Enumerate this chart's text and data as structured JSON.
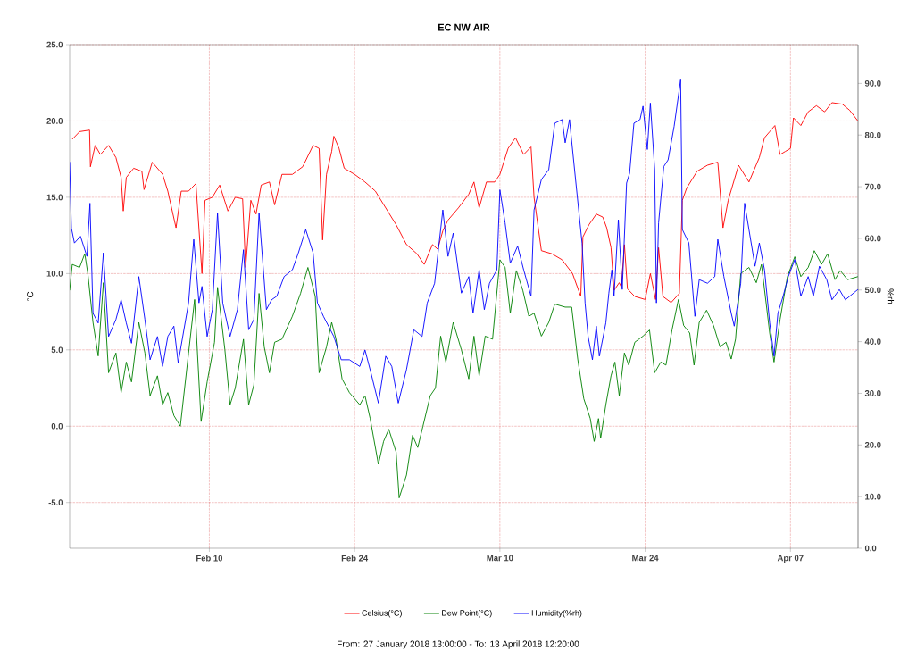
{
  "chart_data": {
    "type": "line",
    "title": "EC NW AIR",
    "ylabel": "°C",
    "y2label": "%rh",
    "annotations": [
      "From: 27 January 2018 13:00:00  -  To: 13 April 2018 12:20:00"
    ],
    "xlim": [
      "2018-01-27T13:00",
      "2018-04-13T12:20"
    ],
    "xticks": [
      {
        "value": "2018-02-10",
        "label": "Feb 10"
      },
      {
        "value": "2018-02-24",
        "label": "Feb 24"
      },
      {
        "value": "2018-03-10",
        "label": "Mar 10"
      },
      {
        "value": "2018-03-24",
        "label": "Mar 24"
      },
      {
        "value": "2018-04-07",
        "label": "Apr 07"
      }
    ],
    "ylim": [
      -8,
      25
    ],
    "yticks": [
      {
        "value": -5,
        "label": "-5.0"
      },
      {
        "value": 0,
        "label": "0.0"
      },
      {
        "value": 5,
        "label": "5.0"
      },
      {
        "value": 10,
        "label": "10.0"
      },
      {
        "value": 15,
        "label": "15.0"
      },
      {
        "value": 20,
        "label": "20.0"
      },
      {
        "value": 25,
        "label": "25.0"
      }
    ],
    "y2lim": [
      0,
      97.5
    ],
    "y2ticks": [
      {
        "value": 0,
        "label": "0.0"
      },
      {
        "value": 10,
        "label": "10.0"
      },
      {
        "value": 20,
        "label": "20.0"
      },
      {
        "value": 30,
        "label": "30.0"
      },
      {
        "value": 40,
        "label": "40.0"
      },
      {
        "value": 50,
        "label": "50.0"
      },
      {
        "value": 60,
        "label": "60.0"
      },
      {
        "value": 70,
        "label": "70.0"
      },
      {
        "value": 80,
        "label": "80.0"
      },
      {
        "value": 90,
        "label": "90.0"
      }
    ],
    "grid": true,
    "legend": "bottom",
    "series": [
      {
        "name": "Celsius(°C)",
        "color": "#ff0000",
        "x": [
          "2018-01-27T19:00",
          "2018-01-28T12:00",
          "2018-01-29T11:00",
          "2018-01-29T13:00",
          "2018-01-30T00:00",
          "2018-01-30T12:00",
          "2018-01-31T07:00",
          "2018-02-01T00:00",
          "2018-02-01T12:00",
          "2018-02-01T17:00",
          "2018-02-02T00:00",
          "2018-02-02T17:00",
          "2018-02-03T12:00",
          "2018-02-03T17:00",
          "2018-02-04T12:00",
          "2018-02-05T12:00",
          "2018-02-06T00:00",
          "2018-02-06T19:00",
          "2018-02-07T07:00",
          "2018-02-08T00:00",
          "2018-02-08T17:00",
          "2018-02-09T07:00",
          "2018-02-09T14:00",
          "2018-02-10T07:00",
          "2018-02-11T00:00",
          "2018-02-11T19:00",
          "2018-02-12T12:00",
          "2018-02-13T05:00",
          "2018-02-13T12:00",
          "2018-02-14T00:00",
          "2018-02-14T12:00",
          "2018-02-15T00:00",
          "2018-02-15T19:00",
          "2018-02-16T07:00",
          "2018-02-17T00:00",
          "2018-02-18T00:00",
          "2018-02-19T00:00",
          "2018-02-20T00:00",
          "2018-02-20T14:00",
          "2018-02-20T22:00",
          "2018-02-21T07:00",
          "2018-02-21T19:00",
          "2018-02-22T00:00",
          "2018-02-22T12:00",
          "2018-02-23T00:00",
          "2018-02-24T00:00",
          "2018-02-25T00:00",
          "2018-02-26T00:00",
          "2018-02-27T00:00",
          "2018-02-28T00:00",
          "2018-03-01T00:00",
          "2018-03-02T00:00",
          "2018-03-02T17:00",
          "2018-03-03T12:00",
          "2018-03-04T00:00",
          "2018-03-04T12:00",
          "2018-03-05T00:00",
          "2018-03-06T00:00",
          "2018-03-07T00:00",
          "2018-03-07T12:00",
          "2018-03-08T00:00",
          "2018-03-08T17:00",
          "2018-03-09T12:00",
          "2018-03-10T00:00",
          "2018-03-10T19:00",
          "2018-03-11T12:00",
          "2018-03-12T07:00",
          "2018-03-13T00:00",
          "2018-03-13T07:00",
          "2018-03-14T00:00",
          "2018-03-15T00:00",
          "2018-03-16T00:00",
          "2018-03-17T00:00",
          "2018-03-17T19:00",
          "2018-03-18T00:00",
          "2018-03-18T14:00",
          "2018-03-19T07:00",
          "2018-03-19T22:00",
          "2018-03-20T07:00",
          "2018-03-20T17:00",
          "2018-03-21T00:00",
          "2018-03-21T12:00",
          "2018-03-21T17:00",
          "2018-03-22T00:00",
          "2018-03-22T07:00",
          "2018-03-23T00:00",
          "2018-03-24T00:00",
          "2018-03-24T12:00",
          "2018-03-25T00:00",
          "2018-03-25T07:00",
          "2018-03-25T17:00",
          "2018-03-26T12:00",
          "2018-03-27T07:00",
          "2018-03-27T14:00",
          "2018-03-28T00:00",
          "2018-03-29T00:00",
          "2018-03-30T00:00",
          "2018-03-31T00:00",
          "2018-03-31T12:00",
          "2018-04-01T00:00",
          "2018-04-02T00:00",
          "2018-04-03T00:00",
          "2018-04-04T00:00",
          "2018-04-04T12:00",
          "2018-04-05T00:00",
          "2018-04-05T12:00",
          "2018-04-06T00:00",
          "2018-04-06T12:00",
          "2018-04-07T00:00",
          "2018-04-07T07:00",
          "2018-04-08T00:00",
          "2018-04-08T17:00",
          "2018-04-09T12:00",
          "2018-04-10T07:00",
          "2018-04-11T00:00",
          "2018-04-12T00:00",
          "2018-04-12T17:00",
          "2018-04-13T12:00"
        ],
        "values": [
          18.8,
          19.3,
          19.4,
          17.0,
          18.4,
          17.8,
          18.4,
          17.6,
          16.3,
          14.1,
          16.3,
          16.9,
          16.7,
          15.5,
          17.3,
          16.5,
          15.4,
          13.0,
          15.4,
          15.4,
          15.9,
          10.0,
          14.8,
          15.0,
          15.8,
          14.1,
          15.0,
          14.9,
          10.4,
          14.8,
          13.9,
          15.8,
          16.0,
          14.5,
          16.5,
          16.5,
          17.0,
          18.4,
          18.2,
          12.2,
          16.5,
          18.0,
          19.0,
          18.2,
          16.9,
          16.5,
          16.0,
          15.4,
          14.3,
          13.2,
          11.9,
          11.3,
          10.6,
          11.9,
          11.6,
          12.8,
          13.5,
          14.3,
          15.2,
          16.0,
          14.3,
          16.0,
          16.0,
          16.5,
          18.2,
          18.9,
          17.8,
          18.3,
          15.0,
          11.5,
          11.3,
          10.9,
          10.0,
          8.5,
          12.4,
          13.2,
          13.9,
          13.7,
          13.0,
          11.7,
          8.9,
          9.4,
          9.1,
          11.9,
          9.0,
          8.5,
          8.3,
          10.0,
          8.3,
          11.7,
          8.5,
          8.1,
          8.7,
          14.8,
          15.6,
          16.7,
          17.1,
          17.3,
          13.0,
          14.8,
          17.1,
          16.0,
          17.6,
          18.9,
          19.3,
          19.7,
          17.8,
          18.0,
          18.2,
          20.2,
          19.7,
          20.6,
          21.0,
          20.6,
          21.2,
          21.1,
          20.7,
          20.0
        ]
      },
      {
        "name": "Dew Point(°C)",
        "color": "#008000",
        "x": [
          "2018-01-27T13:00",
          "2018-01-27T19:00",
          "2018-01-28T12:00",
          "2018-01-29T00:00",
          "2018-01-29T07:00",
          "2018-01-29T19:00",
          "2018-01-30T07:00",
          "2018-01-30T19:00",
          "2018-01-31T07:00",
          "2018-02-01T00:00",
          "2018-02-01T12:00",
          "2018-02-02T00:00",
          "2018-02-02T12:00",
          "2018-02-03T05:00",
          "2018-02-03T19:00",
          "2018-02-04T07:00",
          "2018-02-05T00:00",
          "2018-02-05T12:00",
          "2018-02-06T00:00",
          "2018-02-06T14:00",
          "2018-02-07T05:00",
          "2018-02-08T00:00",
          "2018-02-08T14:00",
          "2018-02-09T05:00",
          "2018-02-09T19:00",
          "2018-02-10T12:00",
          "2018-02-10T19:00",
          "2018-02-11T12:00",
          "2018-02-12T00:00",
          "2018-02-12T12:00",
          "2018-02-13T07:00",
          "2018-02-13T19:00",
          "2018-02-14T07:00",
          "2018-02-14T19:00",
          "2018-02-15T07:00",
          "2018-02-15T19:00",
          "2018-02-16T07:00",
          "2018-02-17T00:00",
          "2018-02-18T00:00",
          "2018-02-18T19:00",
          "2018-02-19T12:00",
          "2018-02-20T05:00",
          "2018-02-20T14:00",
          "2018-02-21T07:00",
          "2018-02-21T19:00",
          "2018-02-22T05:00",
          "2018-02-22T19:00",
          "2018-02-23T12:00",
          "2018-02-24T12:00",
          "2018-02-25T00:00",
          "2018-02-25T12:00",
          "2018-02-26T07:00",
          "2018-02-26T19:00",
          "2018-02-27T07:00",
          "2018-02-28T00:00",
          "2018-02-28T07:00",
          "2018-03-01T00:00",
          "2018-03-01T14:00",
          "2018-03-02T02:00",
          "2018-03-02T14:00",
          "2018-03-03T07:00",
          "2018-03-03T19:00",
          "2018-03-04T07:00",
          "2018-03-04T19:00",
          "2018-03-05T12:00",
          "2018-03-06T07:00",
          "2018-03-07T00:00",
          "2018-03-07T12:00",
          "2018-03-08T00:00",
          "2018-03-08T14:00",
          "2018-03-09T07:00",
          "2018-03-10T00:00",
          "2018-03-10T12:00",
          "2018-03-11T00:00",
          "2018-03-11T14:00",
          "2018-03-12T05:00",
          "2018-03-12T19:00",
          "2018-03-13T07:00",
          "2018-03-14T00:00",
          "2018-03-14T17:00",
          "2018-03-15T07:00",
          "2018-03-16T07:00",
          "2018-03-16T22:00",
          "2018-03-17T12:00",
          "2018-03-18T02:00",
          "2018-03-18T17:00",
          "2018-03-19T02:00",
          "2018-03-19T12:00",
          "2018-03-19T17:00",
          "2018-03-20T05:00",
          "2018-03-20T17:00",
          "2018-03-21T02:00",
          "2018-03-21T12:00",
          "2018-03-22T00:00",
          "2018-03-22T10:00",
          "2018-03-23T00:00",
          "2018-03-23T19:00",
          "2018-03-24T10:00",
          "2018-03-24T22:00",
          "2018-03-25T12:00",
          "2018-03-26T00:00",
          "2018-03-26T14:00",
          "2018-03-27T05:00",
          "2018-03-27T17:00",
          "2018-03-28T07:00",
          "2018-03-28T17:00",
          "2018-03-29T05:00",
          "2018-03-29T22:00",
          "2018-03-30T14:00",
          "2018-03-31T05:00",
          "2018-03-31T19:00",
          "2018-04-01T07:00",
          "2018-04-01T17:00",
          "2018-04-02T05:00",
          "2018-04-03T00:00",
          "2018-04-03T17:00",
          "2018-04-04T05:00",
          "2018-04-05T00:00",
          "2018-04-05T10:00",
          "2018-04-06T00:00",
          "2018-04-06T17:00",
          "2018-04-07T10:00",
          "2018-04-08T00:00",
          "2018-04-08T17:00",
          "2018-04-09T07:00",
          "2018-04-10T00:00",
          "2018-04-10T14:00",
          "2018-04-11T07:00",
          "2018-04-11T19:00",
          "2018-04-12T12:00",
          "2018-04-13T12:00"
        ],
        "values": [
          8.9,
          10.6,
          10.4,
          11.3,
          10.0,
          6.8,
          4.6,
          9.4,
          3.5,
          4.8,
          2.2,
          4.2,
          2.9,
          6.8,
          4.8,
          2.0,
          3.3,
          1.4,
          2.2,
          0.7,
          0.0,
          4.8,
          8.3,
          0.3,
          2.9,
          5.5,
          9.1,
          5.0,
          1.4,
          2.5,
          5.7,
          1.4,
          2.7,
          8.7,
          5.2,
          3.5,
          5.5,
          5.7,
          7.2,
          8.7,
          10.4,
          8.5,
          3.5,
          5.2,
          6.8,
          5.7,
          3.1,
          2.2,
          1.4,
          2.0,
          0.5,
          -2.5,
          -1.0,
          -0.2,
          -1.7,
          -4.7,
          -3.2,
          -0.6,
          -1.4,
          0.0,
          2.0,
          2.5,
          5.9,
          4.2,
          6.8,
          5.0,
          3.1,
          5.9,
          3.3,
          5.9,
          5.7,
          10.9,
          10.4,
          7.4,
          10.2,
          8.9,
          7.2,
          7.4,
          5.9,
          6.8,
          8.0,
          7.8,
          7.8,
          4.4,
          1.8,
          0.5,
          -1.0,
          0.5,
          -0.8,
          1.4,
          3.3,
          4.2,
          2.0,
          4.8,
          4.0,
          5.5,
          5.9,
          6.3,
          3.5,
          4.2,
          4.0,
          6.3,
          8.3,
          6.6,
          6.1,
          4.0,
          6.8,
          7.6,
          6.6,
          5.2,
          5.5,
          4.4,
          5.7,
          10.0,
          10.4,
          9.4,
          10.6,
          6.1,
          4.2,
          7.0,
          9.8,
          11.1,
          9.8,
          10.4,
          11.5,
          10.6,
          11.3,
          9.6,
          10.2,
          9.6,
          9.8
        ]
      },
      {
        "name": "Humidity(%rh)",
        "color": "#0000ff",
        "axis": "y2",
        "x": [
          "2018-01-27T13:00",
          "2018-01-27T17:00",
          "2018-01-28T00:00",
          "2018-01-28T14:00",
          "2018-01-29T05:00",
          "2018-01-29T12:00",
          "2018-01-29T19:00",
          "2018-01-30T07:00",
          "2018-01-30T19:00",
          "2018-01-31T07:00",
          "2018-02-01T00:00",
          "2018-02-01T12:00",
          "2018-02-02T00:00",
          "2018-02-02T12:00",
          "2018-02-03T05:00",
          "2018-02-03T19:00",
          "2018-02-04T07:00",
          "2018-02-05T00:00",
          "2018-02-05T12:00",
          "2018-02-06T00:00",
          "2018-02-06T14:00",
          "2018-02-07T00:00",
          "2018-02-08T00:00",
          "2018-02-08T12:00",
          "2018-02-09T00:00",
          "2018-02-09T07:00",
          "2018-02-09T19:00",
          "2018-02-10T07:00",
          "2018-02-10T19:00",
          "2018-02-11T07:00",
          "2018-02-12T00:00",
          "2018-02-12T17:00",
          "2018-02-13T07:00",
          "2018-02-13T19:00",
          "2018-02-14T07:00",
          "2018-02-14T19:00",
          "2018-02-15T12:00",
          "2018-02-16T00:00",
          "2018-02-16T12:00",
          "2018-02-17T05:00",
          "2018-02-18T00:00",
          "2018-02-18T14:00",
          "2018-02-19T07:00",
          "2018-02-20T00:00",
          "2018-02-20T10:00",
          "2018-02-21T00:00",
          "2018-02-22T00:00",
          "2018-02-22T17:00",
          "2018-02-23T12:00",
          "2018-02-24T12:00",
          "2018-02-25T00:00",
          "2018-02-25T14:00",
          "2018-02-26T07:00",
          "2018-02-27T00:00",
          "2018-02-27T14:00",
          "2018-02-28T05:00",
          "2018-03-01T00:00",
          "2018-03-01T17:00",
          "2018-03-02T12:00",
          "2018-03-03T00:00",
          "2018-03-03T17:00",
          "2018-03-04T12:00",
          "2018-03-05T00:00",
          "2018-03-05T12:00",
          "2018-03-06T07:00",
          "2018-03-07T00:00",
          "2018-03-07T10:00",
          "2018-03-08T00:00",
          "2018-03-08T12:00",
          "2018-03-09T00:00",
          "2018-03-09T17:00",
          "2018-03-10T00:00",
          "2018-03-10T12:00",
          "2018-03-11T00:00",
          "2018-03-11T17:00",
          "2018-03-12T07:00",
          "2018-03-13T00:00",
          "2018-03-13T07:00",
          "2018-03-14T00:00",
          "2018-03-14T17:00",
          "2018-03-15T07:00",
          "2018-03-16T00:00",
          "2018-03-16T07:00",
          "2018-03-16T17:00",
          "2018-03-17T07:00",
          "2018-03-17T22:00",
          "2018-03-18T05:00",
          "2018-03-18T12:00",
          "2018-03-18T22:00",
          "2018-03-19T07:00",
          "2018-03-19T14:00",
          "2018-03-20T05:00",
          "2018-03-20T12:00",
          "2018-03-20T19:00",
          "2018-03-21T00:00",
          "2018-03-21T10:00",
          "2018-03-21T19:00",
          "2018-03-22T05:00",
          "2018-03-22T12:00",
          "2018-03-22T22:00",
          "2018-03-23T12:00",
          "2018-03-23T19:00",
          "2018-03-24T05:00",
          "2018-03-24T12:00",
          "2018-03-24T22:00",
          "2018-03-25T02:00",
          "2018-03-25T07:00",
          "2018-03-25T19:00",
          "2018-03-26T05:00",
          "2018-03-26T19:00",
          "2018-03-27T10:00",
          "2018-03-27T14:00",
          "2018-03-28T05:00",
          "2018-03-28T19:00",
          "2018-03-29T05:00",
          "2018-03-30T00:00",
          "2018-03-30T17:00",
          "2018-03-31T00:00",
          "2018-03-31T14:00",
          "2018-04-01T07:00",
          "2018-04-01T14:00",
          "2018-04-02T05:00",
          "2018-04-02T14:00",
          "2018-04-03T00:00",
          "2018-04-03T14:00",
          "2018-04-04T00:00",
          "2018-04-04T12:00",
          "2018-04-05T00:00",
          "2018-04-05T10:00",
          "2018-04-05T19:00",
          "2018-04-06T07:00",
          "2018-04-06T19:00",
          "2018-04-07T10:00",
          "2018-04-08T00:00",
          "2018-04-08T17:00",
          "2018-04-09T05:00",
          "2018-04-09T19:00",
          "2018-04-10T12:00",
          "2018-04-11T00:00",
          "2018-04-11T17:00",
          "2018-04-12T07:00",
          "2018-04-13T12:00"
        ],
        "values": [
          74.8,
          62.0,
          59.1,
          60.4,
          56.5,
          66.8,
          45.5,
          43.6,
          57.2,
          41.0,
          44.3,
          48.1,
          43.6,
          39.7,
          52.6,
          44.3,
          36.5,
          41.0,
          35.2,
          41.0,
          43.0,
          35.9,
          47.5,
          59.8,
          47.5,
          50.7,
          41.0,
          46.2,
          64.9,
          47.5,
          41.0,
          46.2,
          57.8,
          42.3,
          44.3,
          64.9,
          46.2,
          48.1,
          48.8,
          52.6,
          53.9,
          57.2,
          61.7,
          57.2,
          47.5,
          44.9,
          41.0,
          36.5,
          36.5,
          35.2,
          38.4,
          33.9,
          28.1,
          37.2,
          35.2,
          28.1,
          34.6,
          42.3,
          41.0,
          47.5,
          51.3,
          65.5,
          56.5,
          61.0,
          49.4,
          52.6,
          45.5,
          53.9,
          46.2,
          51.3,
          53.9,
          69.4,
          63.0,
          55.2,
          58.5,
          53.9,
          48.8,
          65.5,
          71.4,
          73.3,
          82.3,
          83.0,
          78.5,
          83.0,
          71.4,
          59.1,
          47.5,
          41.0,
          36.5,
          43.0,
          37.2,
          43.6,
          49.4,
          53.9,
          48.8,
          63.6,
          50.1,
          70.7,
          72.6,
          82.3,
          83.0,
          85.6,
          77.2,
          86.2,
          73.3,
          47.5,
          63.0,
          73.9,
          75.2,
          81.7,
          90.7,
          61.7,
          59.1,
          44.9,
          52.0,
          51.3,
          52.6,
          59.8,
          52.6,
          45.5,
          43.0,
          51.3,
          66.8,
          61.7,
          54.6,
          59.1,
          53.9,
          43.6,
          37.2,
          45.5,
          48.8,
          52.6,
          55.9,
          48.8,
          52.6,
          48.8,
          54.6,
          52.0,
          48.1,
          50.1,
          48.1,
          50.1
        ]
      }
    ]
  }
}
